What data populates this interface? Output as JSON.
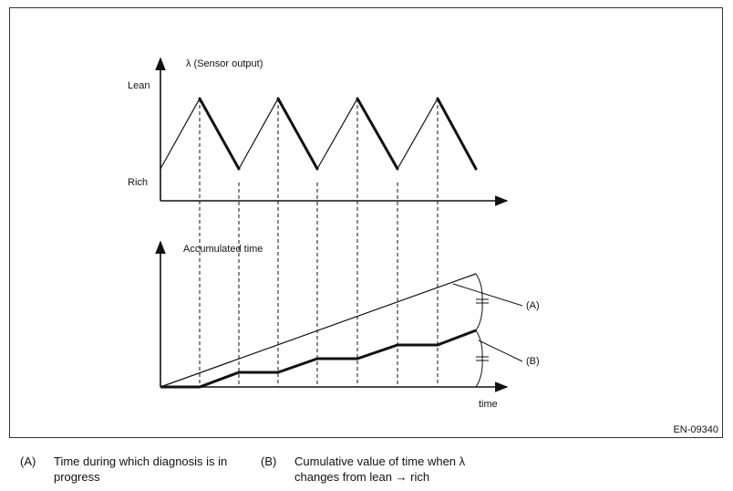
{
  "figure": {
    "top_chart": {
      "y_axis_label": "λ (Sensor output)",
      "y_level_high": "Lean",
      "y_level_low": "Rich"
    },
    "bottom_chart": {
      "y_axis_label": "Accumulated time",
      "x_axis_label": "time",
      "callout_a": "(A)",
      "callout_b": "(B)"
    },
    "figure_id": "EN-09340"
  },
  "legend": {
    "items": [
      {
        "key": "(A)",
        "text_line1": "Time during which diagnosis is in",
        "text_line2": "progress"
      },
      {
        "key": "(B)",
        "text_line1": "Cumulative value of time when λ",
        "text_line2": "changes from lean → rich"
      }
    ]
  }
}
